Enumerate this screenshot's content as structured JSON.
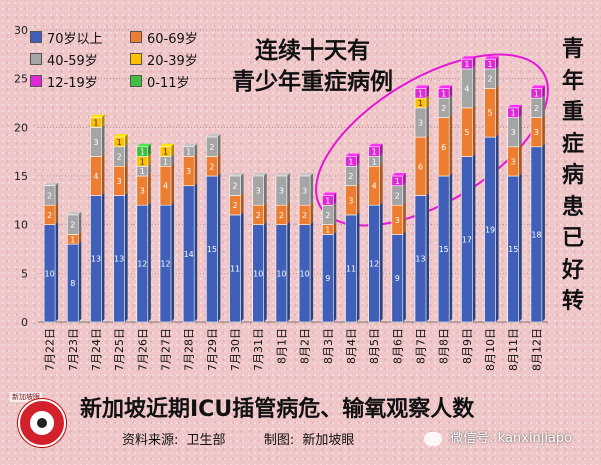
{
  "chart_data": {
    "type": "bar",
    "stacked": true,
    "ylim": [
      0,
      30
    ],
    "yticks": [
      0,
      5,
      10,
      15,
      20,
      25,
      30
    ],
    "categories": [
      "7月22日",
      "7月23日",
      "7月24日",
      "7月25日",
      "7月26日",
      "7月27日",
      "7月28日",
      "7月29日",
      "7月30日",
      "7月31日",
      "8月1日",
      "8月2日",
      "8月3日",
      "8月4日",
      "8月5日",
      "8月6日",
      "8月7日",
      "8月8日",
      "8月9日",
      "8月10日",
      "8月11日",
      "8月12日"
    ],
    "series": [
      {
        "name": "70岁以上",
        "color": "#3f5fb8",
        "values": [
          10,
          8,
          13,
          13,
          12,
          12,
          14,
          15,
          11,
          10,
          10,
          10,
          9,
          11,
          12,
          9,
          13,
          15,
          17,
          19,
          15,
          18
        ]
      },
      {
        "name": "60-69岁",
        "color": "#ed7d31",
        "values": [
          2,
          1,
          4,
          3,
          3,
          4,
          3,
          2,
          2,
          2,
          2,
          2,
          1,
          3,
          4,
          3,
          6,
          6,
          5,
          5,
          3,
          3
        ]
      },
      {
        "name": "40-59岁",
        "color": "#a5a5a5",
        "values": [
          2,
          2,
          3,
          2,
          1,
          1,
          1,
          2,
          2,
          3,
          3,
          3,
          2,
          2,
          1,
          2,
          3,
          2,
          4,
          2,
          3,
          2
        ]
      },
      {
        "name": "20-39岁",
        "color": "#ffc000",
        "values": [
          0,
          0,
          1,
          1,
          1,
          1,
          0,
          0,
          0,
          0,
          0,
          0,
          0,
          0,
          0,
          0,
          1,
          0,
          0,
          0,
          0,
          0
        ]
      },
      {
        "name": "12-19岁",
        "color": "#e028d8",
        "values": [
          0,
          0,
          0,
          0,
          0,
          0,
          0,
          0,
          0,
          0,
          0,
          0,
          1,
          1,
          1,
          1,
          1,
          1,
          1,
          1,
          1,
          1
        ]
      },
      {
        "name": "0-11岁",
        "color": "#3fbf3f",
        "values": [
          0,
          0,
          0,
          0,
          1,
          0,
          0,
          0,
          0,
          0,
          0,
          0,
          0,
          0,
          0,
          0,
          0,
          0,
          0,
          0,
          0,
          0
        ]
      }
    ],
    "title": "新加坡近期ICU插管病危、输氧观察人数",
    "annotation": "连续十天有青少年重症病例",
    "side_note": "青年重症病患已好转"
  },
  "headline": {
    "line1": "连续十天有",
    "line2": "青少年重症病例"
  },
  "side_note_chars": [
    "青",
    "年",
    "重",
    "症",
    "病",
    "患",
    "已",
    "好",
    "转"
  ],
  "footer": {
    "title": "新加坡近期ICU插管病危、输氧观察人数",
    "source_label": "资料来源:",
    "source": "卫生部",
    "maker_label": "制图:",
    "maker": "新加坡眼"
  },
  "logo_text": "新加坡眼",
  "watermark": "微信号: kanxinjiapo"
}
